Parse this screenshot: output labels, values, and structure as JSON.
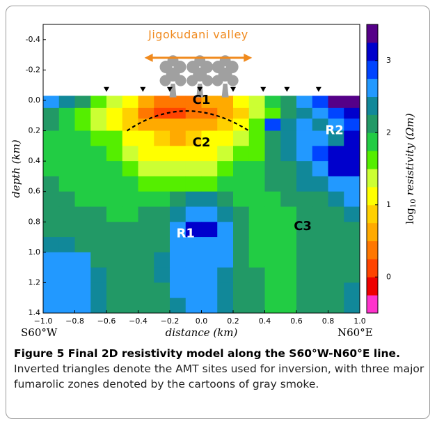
{
  "chart_data": {
    "type": "heatmap",
    "annotation": "Jigokudani valley",
    "x_label": "distance (km)",
    "y_label": "depth (km)",
    "x_left_label": "S60°W",
    "x_right_label": "N60°E",
    "colorbar_label": {
      "base": "log",
      "sub": "10",
      "rest": "resistivity (Ωm)"
    },
    "zone_labels": [
      "C1",
      "C2",
      "R1",
      "C3",
      "R2"
    ],
    "xlim": [
      -1.0,
      1.0
    ],
    "ylim": [
      -0.5,
      1.4
    ],
    "clim": [
      -0.5,
      3.5
    ],
    "xticks": [
      {
        "value": -1.0,
        "label": "−1.0"
      },
      {
        "value": -0.8,
        "label": "−0.8"
      },
      {
        "value": -0.6,
        "label": "−0.6"
      },
      {
        "value": -0.4,
        "label": "−0.4"
      },
      {
        "value": -0.2,
        "label": "−0.2"
      },
      {
        "value": 0,
        "label": "0.0"
      },
      0.2,
      0.4,
      0.6,
      0.8,
      {
        "value": 1.0,
        "label": "1.0"
      }
    ],
    "yticks": [
      -0.4,
      -0.2,
      {
        "value": 0,
        "label": "0.0"
      },
      0.2,
      0.4,
      0.6,
      0.8,
      {
        "value": 1.0,
        "label": "1.0"
      },
      1.2,
      1.4
    ],
    "cticks": [
      0,
      1,
      2,
      3
    ],
    "colors": [
      "#ff33cc",
      "#ee0000",
      "#ff4400",
      "#ff7700",
      "#ffaa00",
      "#ffd000",
      "#ffff00",
      "#ccff33",
      "#55ee00",
      "#22cc44",
      "#229966",
      "#118899",
      "#2299ff",
      "#0044ff",
      "#0000cc",
      "#550088"
    ],
    "sites": [
      -0.6,
      -0.37,
      -0.2,
      -0.01,
      0.2,
      0.39,
      0.54,
      0.74
    ],
    "x_edges": [
      -1.0,
      -0.9,
      -0.8,
      -0.7,
      -0.6,
      -0.5,
      -0.4,
      -0.3,
      -0.2,
      -0.1,
      0,
      0.1,
      0.2,
      0.3,
      0.4,
      0.5,
      0.6,
      0.7,
      0.8,
      0.9,
      1.0
    ],
    "y_edges": [
      -0.03,
      0.05,
      0.12,
      0.2,
      0.3,
      0.4,
      0.5,
      0.6,
      0.7,
      0.8,
      0.9,
      1.0,
      1.1,
      1.2,
      1.3,
      1.4
    ],
    "values": [
      [
        2.6,
        2.3,
        2.0,
        1.6,
        1.3,
        1.0,
        0.6,
        0.4,
        0.3,
        0.4,
        0.5,
        0.7,
        1.0,
        1.4,
        1.8,
        2.2,
        2.6,
        2.9,
        3.3,
        3.4
      ],
      [
        2.1,
        1.9,
        1.6,
        1.3,
        1.0,
        0.8,
        0.4,
        0.2,
        0.2,
        0.3,
        0.4,
        0.6,
        0.9,
        1.3,
        1.7,
        2.1,
        2.4,
        2.6,
        2.8,
        3.0
      ],
      [
        2.0,
        1.8,
        1.6,
        1.4,
        1.2,
        0.9,
        0.7,
        0.6,
        0.5,
        0.6,
        0.7,
        0.9,
        1.2,
        1.5,
        2.9,
        2.3,
        2.6,
        2.3,
        2.6,
        2.8
      ],
      [
        1.9,
        1.9,
        1.8,
        1.7,
        1.5,
        1.2,
        1.0,
        0.9,
        0.7,
        0.8,
        1.0,
        1.1,
        1.3,
        1.6,
        2.0,
        2.4,
        2.7,
        2.6,
        2.3,
        3.0
      ],
      [
        1.9,
        1.9,
        1.9,
        1.8,
        1.7,
        1.4,
        1.1,
        1.0,
        1.1,
        1.1,
        1.1,
        1.3,
        1.5,
        1.7,
        2.0,
        2.3,
        2.5,
        2.8,
        3.0,
        3.1
      ],
      [
        1.9,
        1.9,
        1.9,
        1.9,
        1.8,
        1.7,
        1.4,
        1.3,
        1.3,
        1.3,
        1.4,
        1.6,
        1.8,
        1.8,
        2.0,
        2.2,
        2.4,
        2.7,
        3.0,
        3.0
      ],
      [
        2.0,
        1.9,
        1.9,
        1.9,
        1.9,
        1.8,
        1.7,
        1.6,
        1.6,
        1.7,
        1.7,
        1.8,
        1.9,
        1.9,
        2.0,
        2.1,
        2.3,
        2.4,
        2.6,
        2.7
      ],
      [
        2.0,
        2.0,
        1.9,
        1.9,
        1.9,
        1.9,
        1.9,
        1.9,
        2.0,
        2.4,
        2.4,
        2.0,
        1.9,
        1.9,
        1.9,
        2.0,
        2.1,
        2.2,
        2.4,
        2.5
      ],
      [
        2.1,
        2.1,
        2.0,
        2.0,
        1.9,
        1.9,
        2.0,
        2.1,
        2.4,
        2.6,
        2.6,
        2.4,
        2.0,
        1.9,
        1.9,
        1.9,
        2.0,
        2.1,
        2.2,
        2.3
      ],
      [
        2.2,
        2.2,
        2.1,
        2.0,
        2.0,
        2.0,
        2.1,
        2.2,
        2.5,
        3.0,
        3.0,
        2.5,
        2.1,
        1.9,
        1.9,
        1.9,
        2.0,
        2.1,
        2.2,
        2.2
      ],
      [
        2.4,
        2.4,
        2.2,
        2.1,
        2.0,
        2.0,
        2.1,
        2.2,
        2.5,
        2.6,
        2.6,
        2.5,
        2.2,
        1.9,
        1.8,
        1.9,
        2.0,
        2.1,
        2.2,
        2.2
      ],
      [
        2.6,
        2.6,
        2.6,
        2.2,
        2.1,
        2.0,
        2.1,
        2.3,
        2.5,
        2.5,
        2.5,
        2.5,
        2.2,
        1.9,
        1.8,
        1.8,
        2.0,
        2.1,
        2.2,
        2.2
      ],
      [
        2.6,
        2.6,
        2.6,
        2.3,
        2.1,
        2.0,
        2.1,
        2.3,
        2.5,
        2.5,
        2.5,
        2.4,
        2.2,
        2.0,
        1.8,
        1.8,
        2.0,
        2.1,
        2.2,
        2.2
      ],
      [
        2.6,
        2.6,
        2.6,
        2.3,
        2.1,
        2.0,
        2.1,
        2.2,
        2.5,
        2.5,
        2.5,
        2.4,
        2.2,
        2.0,
        1.9,
        1.9,
        2.0,
        2.1,
        2.2,
        2.3
      ],
      [
        2.6,
        2.6,
        2.6,
        2.3,
        2.1,
        2.0,
        2.1,
        2.2,
        2.4,
        2.5,
        2.5,
        2.4,
        2.2,
        2.0,
        1.9,
        1.9,
        2.0,
        2.1,
        2.2,
        2.3
      ]
    ]
  },
  "caption": {
    "title": "Figure 5 Final 2D resistivity model along the S60°W-N60°E line.",
    "text": "Inverted triangles denote the AMT sites used for inversion, with three major fumarolic zones denoted by the cartoons of gray smoke."
  }
}
